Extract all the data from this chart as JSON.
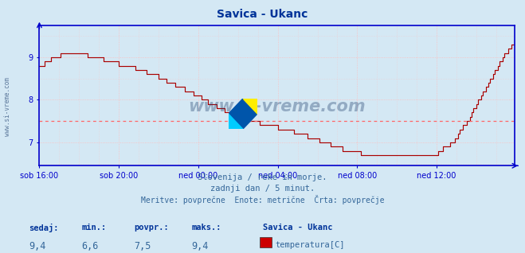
{
  "title": "Savica - Ukanc",
  "title_color": "#003399",
  "background_color": "#d4e8f4",
  "plot_bg_color": "#d4e8f4",
  "line_color": "#aa0000",
  "avg_line_color": "#ff6666",
  "avg_line_value": 7.5,
  "x_labels": [
    "sob 16:00",
    "sob 20:00",
    "ned 00:00",
    "ned 04:00",
    "ned 08:00",
    "ned 12:00"
  ],
  "y_ticks": [
    7,
    8,
    9
  ],
  "ylim_min": 6.45,
  "ylim_max": 9.75,
  "grid_color": "#ffbbbb",
  "axis_color": "#0000cc",
  "watermark_text": "www.si-vreme.com",
  "watermark_color": "#1a3a6a",
  "left_label": "www.si-vreme.com",
  "subtitle1": "Slovenija / reke in morje.",
  "subtitle2": "zadnji dan / 5 minut.",
  "subtitle3": "Meritve: povprečne  Enote: metrične  Črta: povprečje",
  "subtitle_color": "#336699",
  "footer_labels": [
    "sedaj:",
    "min.:",
    "povpr.:",
    "maks.:"
  ],
  "footer_values": [
    "9,4",
    "6,6",
    "7,5",
    "9,4"
  ],
  "footer_series_name": "Savica - Ukanc",
  "footer_series_label": "temperatura[C]",
  "footer_color": "#336699",
  "footer_bold_color": "#003399",
  "legend_rect_color": "#cc0000",
  "n_points": 288
}
